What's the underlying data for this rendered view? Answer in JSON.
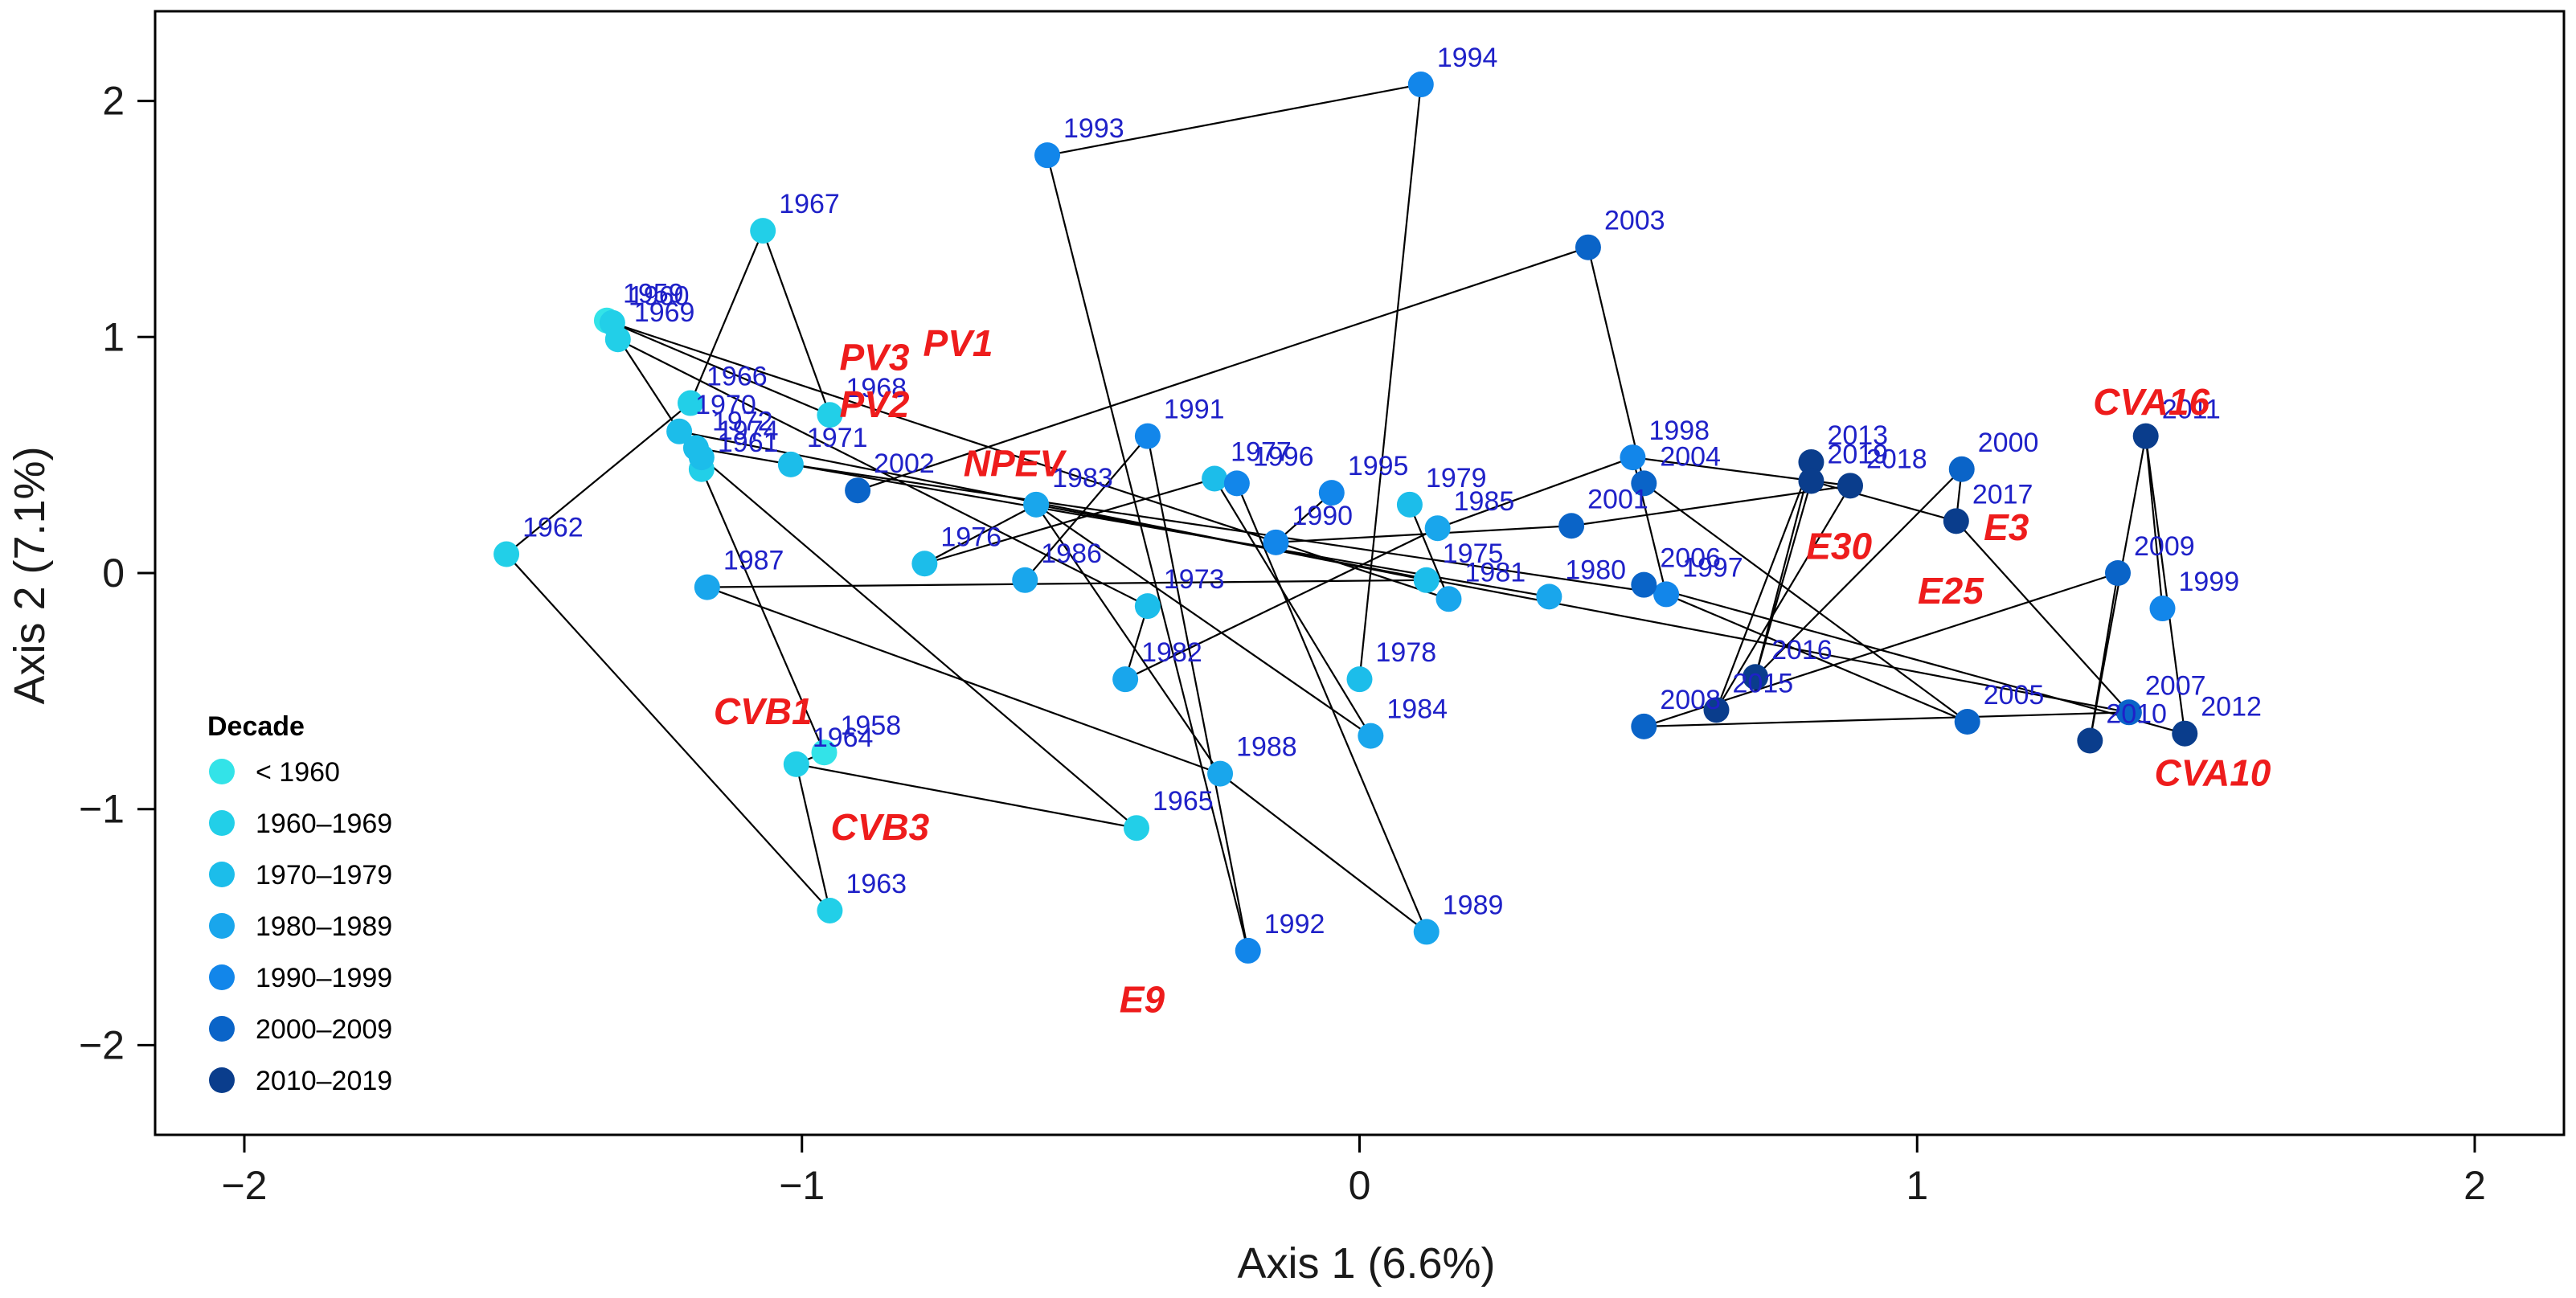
{
  "chart_data": {
    "type": "scatter",
    "xlabel": "Axis 1 (6.6%)",
    "ylabel": "Axis 2 (7.1%)",
    "xlim": [
      -2.16,
      2.16
    ],
    "ylim": [
      -2.38,
      2.38
    ],
    "x_ticks": [
      -2,
      -1,
      0,
      1,
      2
    ],
    "y_ticks": [
      -2,
      -1,
      0,
      1,
      2
    ],
    "x_tick_labels": [
      "−2",
      "−1",
      "0",
      "1",
      "2"
    ],
    "y_tick_labels": [
      "−2",
      "−1",
      "0",
      "1",
      "2"
    ],
    "grid": false,
    "legend": {
      "title": "Decade",
      "position": "bottom-left",
      "entries": [
        {
          "label": "< 1960",
          "color": "#33e3e8"
        },
        {
          "label": "1960–1969",
          "color": "#22cfe8"
        },
        {
          "label": "1970–1979",
          "color": "#1cbdea"
        },
        {
          "label": "1980–1989",
          "color": "#19a6ec"
        },
        {
          "label": "1990–1999",
          "color": "#1286ea"
        },
        {
          "label": "2000–2009",
          "color": "#0a64c8"
        },
        {
          "label": "2010–2019",
          "color": "#0a3d8c"
        }
      ]
    },
    "points": [
      {
        "label": "1958",
        "x": -0.96,
        "y": -0.76,
        "decade": 0
      },
      {
        "label": "1959",
        "x": -1.35,
        "y": 1.07,
        "decade": 0
      },
      {
        "label": "1960",
        "x": -1.34,
        "y": 1.06,
        "decade": 1
      },
      {
        "label": "1961",
        "x": -1.18,
        "y": 0.44,
        "decade": 1
      },
      {
        "label": "1962",
        "x": -1.53,
        "y": 0.08,
        "decade": 1
      },
      {
        "label": "1963",
        "x": -0.95,
        "y": -1.43,
        "decade": 1
      },
      {
        "label": "1964",
        "x": -1.01,
        "y": -0.81,
        "decade": 1
      },
      {
        "label": "1965",
        "x": -0.4,
        "y": -1.08,
        "decade": 1
      },
      {
        "label": "1966",
        "x": -1.2,
        "y": 0.72,
        "decade": 1
      },
      {
        "label": "1967",
        "x": -1.07,
        "y": 1.45,
        "decade": 1
      },
      {
        "label": "1968",
        "x": -0.95,
        "y": 0.67,
        "decade": 1
      },
      {
        "label": "1969",
        "x": -1.33,
        "y": 0.99,
        "decade": 1
      },
      {
        "label": "1970",
        "x": -1.22,
        "y": 0.6,
        "decade": 2
      },
      {
        "label": "1971",
        "x": -1.02,
        "y": 0.46,
        "decade": 2
      },
      {
        "label": "1972",
        "x": -1.19,
        "y": 0.53,
        "decade": 2
      },
      {
        "label": "1973",
        "x": -0.38,
        "y": -0.14,
        "decade": 2
      },
      {
        "label": "1974",
        "x": -1.18,
        "y": 0.49,
        "decade": 2
      },
      {
        "label": "1975",
        "x": 0.12,
        "y": -0.03,
        "decade": 2
      },
      {
        "label": "1976",
        "x": -0.78,
        "y": 0.04,
        "decade": 2
      },
      {
        "label": "1977",
        "x": -0.26,
        "y": 0.4,
        "decade": 2
      },
      {
        "label": "1978",
        "x": 0.0,
        "y": -0.45,
        "decade": 2
      },
      {
        "label": "1979",
        "x": 0.09,
        "y": 0.29,
        "decade": 2
      },
      {
        "label": "1980",
        "x": 0.34,
        "y": -0.1,
        "decade": 3
      },
      {
        "label": "1981",
        "x": 0.16,
        "y": -0.11,
        "decade": 3
      },
      {
        "label": "1982",
        "x": -0.42,
        "y": -0.45,
        "decade": 3
      },
      {
        "label": "1983",
        "x": -0.58,
        "y": 0.29,
        "decade": 3
      },
      {
        "label": "1984",
        "x": 0.02,
        "y": -0.69,
        "decade": 3
      },
      {
        "label": "1985",
        "x": 0.14,
        "y": 0.19,
        "decade": 3
      },
      {
        "label": "1986",
        "x": -0.6,
        "y": -0.03,
        "decade": 3
      },
      {
        "label": "1987",
        "x": -1.17,
        "y": -0.06,
        "decade": 3
      },
      {
        "label": "1988",
        "x": -0.25,
        "y": -0.85,
        "decade": 3
      },
      {
        "label": "1989",
        "x": 0.12,
        "y": -1.52,
        "decade": 3
      },
      {
        "label": "1990",
        "x": -0.15,
        "y": 0.13,
        "decade": 4
      },
      {
        "label": "1991",
        "x": -0.38,
        "y": 0.58,
        "decade": 4
      },
      {
        "label": "1992",
        "x": -0.2,
        "y": -1.6,
        "decade": 4
      },
      {
        "label": "1993",
        "x": -0.56,
        "y": 1.77,
        "decade": 4
      },
      {
        "label": "1994",
        "x": 0.11,
        "y": 2.07,
        "decade": 4
      },
      {
        "label": "1995",
        "x": -0.05,
        "y": 0.34,
        "decade": 4
      },
      {
        "label": "1996",
        "x": -0.22,
        "y": 0.38,
        "decade": 4
      },
      {
        "label": "1997",
        "x": 0.55,
        "y": -0.09,
        "decade": 4
      },
      {
        "label": "1998",
        "x": 0.49,
        "y": 0.49,
        "decade": 4
      },
      {
        "label": "1999",
        "x": 1.44,
        "y": -0.15,
        "decade": 4
      },
      {
        "label": "2000",
        "x": 1.08,
        "y": 0.44,
        "decade": 5
      },
      {
        "label": "2001",
        "x": 0.38,
        "y": 0.2,
        "decade": 5
      },
      {
        "label": "2002",
        "x": -0.9,
        "y": 0.35,
        "decade": 5
      },
      {
        "label": "2003",
        "x": 0.41,
        "y": 1.38,
        "decade": 5
      },
      {
        "label": "2004",
        "x": 0.51,
        "y": 0.38,
        "decade": 5
      },
      {
        "label": "2005",
        "x": 1.09,
        "y": -0.63,
        "decade": 5
      },
      {
        "label": "2006",
        "x": 0.51,
        "y": -0.05,
        "decade": 5
      },
      {
        "label": "2007",
        "x": 1.38,
        "y": -0.59,
        "decade": 5
      },
      {
        "label": "2008",
        "x": 0.51,
        "y": -0.65,
        "decade": 5
      },
      {
        "label": "2009",
        "x": 1.36,
        "y": 0.0,
        "decade": 5
      },
      {
        "label": "2010",
        "x": 1.31,
        "y": -0.71,
        "decade": 6
      },
      {
        "label": "2011",
        "x": 1.41,
        "y": 0.58,
        "decade": 6
      },
      {
        "label": "2012",
        "x": 1.48,
        "y": -0.68,
        "decade": 6
      },
      {
        "label": "2013",
        "x": 0.81,
        "y": 0.47,
        "decade": 6
      },
      {
        "label": "2015",
        "x": 0.64,
        "y": -0.58,
        "decade": 6
      },
      {
        "label": "2016",
        "x": 0.71,
        "y": -0.44,
        "decade": 6
      },
      {
        "label": "2017",
        "x": 1.07,
        "y": 0.22,
        "decade": 6
      },
      {
        "label": "2018",
        "x": 0.88,
        "y": 0.37,
        "decade": 6
      },
      {
        "label": "2019",
        "x": 0.81,
        "y": 0.39,
        "decade": 6
      }
    ],
    "segments": [
      [
        "1958",
        "1964"
      ],
      [
        "1964",
        "1965"
      ],
      [
        "1964",
        "1963"
      ],
      [
        "1963",
        "1962"
      ],
      [
        "1962",
        "1966"
      ],
      [
        "1966",
        "1967"
      ],
      [
        "1967",
        "1968"
      ],
      [
        "1968",
        "1959"
      ],
      [
        "1959",
        "1970"
      ],
      [
        "1960",
        "1981"
      ],
      [
        "1969",
        "1973"
      ],
      [
        "1970",
        "1975"
      ],
      [
        "1972",
        "1980"
      ],
      [
        "1971",
        "1997"
      ],
      [
        "1974",
        "1965"
      ],
      [
        "1961",
        "1958"
      ],
      [
        "1987",
        "1975"
      ],
      [
        "1987",
        "1988"
      ],
      [
        "1988",
        "1989"
      ],
      [
        "1988",
        "1983"
      ],
      [
        "1983",
        "1984"
      ],
      [
        "1983",
        "2007"
      ],
      [
        "1986",
        "1991"
      ],
      [
        "1991",
        "1992"
      ],
      [
        "1992",
        "1993"
      ],
      [
        "1993",
        "1994"
      ],
      [
        "1994",
        "1978"
      ],
      [
        "1977",
        "1984"
      ],
      [
        "1996",
        "1989"
      ],
      [
        "1982",
        "1985"
      ],
      [
        "1985",
        "1998"
      ],
      [
        "1998",
        "1997"
      ],
      [
        "1998",
        "2018"
      ],
      [
        "2018",
        "2001"
      ],
      [
        "2001",
        "1990"
      ],
      [
        "1990",
        "1995"
      ],
      [
        "2002",
        "2003"
      ],
      [
        "2003",
        "2004"
      ],
      [
        "2004",
        "2005"
      ],
      [
        "2005",
        "2006"
      ],
      [
        "2006",
        "2012"
      ],
      [
        "2008",
        "2009"
      ],
      [
        "2008",
        "2007"
      ],
      [
        "2007",
        "2017"
      ],
      [
        "2009",
        "2010"
      ],
      [
        "2010",
        "2011"
      ],
      [
        "2011",
        "1999"
      ],
      [
        "2011",
        "2012"
      ],
      [
        "2013",
        "2015"
      ],
      [
        "2013",
        "2016"
      ],
      [
        "2016",
        "2019"
      ],
      [
        "2019",
        "2017"
      ],
      [
        "2017",
        "2000"
      ],
      [
        "2000",
        "2016"
      ],
      [
        "2015",
        "2018"
      ],
      [
        "1976",
        "1983"
      ],
      [
        "1976",
        "1977"
      ],
      [
        "1973",
        "1982"
      ],
      [
        "1979",
        "1981"
      ]
    ],
    "annotations": [
      {
        "text": "PV3",
        "x": -0.87,
        "y": 0.86
      },
      {
        "text": "PV1",
        "x": -0.72,
        "y": 0.92
      },
      {
        "text": "PV2",
        "x": -0.87,
        "y": 0.66
      },
      {
        "text": "NPEV",
        "x": -0.62,
        "y": 0.41
      },
      {
        "text": "CVB1",
        "x": -1.07,
        "y": -0.64
      },
      {
        "text": "CVB3",
        "x": -0.86,
        "y": -1.13
      },
      {
        "text": "E9",
        "x": -0.39,
        "y": -1.86
      },
      {
        "text": "E30",
        "x": 0.86,
        "y": 0.06
      },
      {
        "text": "E3",
        "x": 1.16,
        "y": 0.14
      },
      {
        "text": "E25",
        "x": 1.06,
        "y": -0.13
      },
      {
        "text": "CVA16",
        "x": 1.42,
        "y": 0.67
      },
      {
        "text": "CVA10",
        "x": 1.53,
        "y": -0.9
      }
    ]
  }
}
